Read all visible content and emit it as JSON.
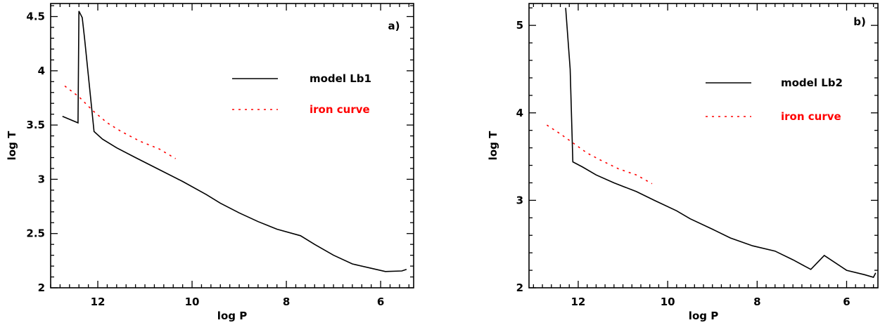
{
  "chart_data": [
    {
      "type": "line",
      "panel_label": "a)",
      "xlabel": "log P",
      "ylabel": "log T",
      "xlim": [
        13.0,
        5.3
      ],
      "ylim": [
        2.0,
        4.62
      ],
      "xticks_major": [
        12,
        10,
        8,
        6
      ],
      "yticks_major": [
        2,
        2.5,
        3,
        3.5,
        4,
        4.5
      ],
      "xtick_labels": [
        "12",
        "10",
        "8",
        "6"
      ],
      "ytick_labels": [
        "2",
        "2.5",
        "3",
        "3.5",
        "4",
        "4.5"
      ],
      "legend_position": "upper-right",
      "series": [
        {
          "name": "model Lb1",
          "color": "#000000",
          "style": "solid",
          "points": [
            [
              12.75,
              3.58
            ],
            [
              12.42,
              3.52
            ],
            [
              12.4,
              4.55
            ],
            [
              12.33,
              4.49
            ],
            [
              12.28,
              4.3
            ],
            [
              12.08,
              3.44
            ],
            [
              11.9,
              3.37
            ],
            [
              11.6,
              3.29
            ],
            [
              11.2,
              3.2
            ],
            [
              10.7,
              3.09
            ],
            [
              10.2,
              2.98
            ],
            [
              9.7,
              2.86
            ],
            [
              9.4,
              2.78
            ],
            [
              9.0,
              2.69
            ],
            [
              8.6,
              2.61
            ],
            [
              8.2,
              2.54
            ],
            [
              7.7,
              2.48
            ],
            [
              7.4,
              2.4
            ],
            [
              7.0,
              2.3
            ],
            [
              6.6,
              2.22
            ],
            [
              6.2,
              2.18
            ],
            [
              5.9,
              2.15
            ],
            [
              5.55,
              2.155
            ],
            [
              5.45,
              2.17
            ]
          ]
        },
        {
          "name": "iron curve",
          "color": "#ff0000",
          "style": "dotted",
          "points": [
            [
              12.7,
              3.86
            ],
            [
              12.4,
              3.76
            ],
            [
              12.1,
              3.63
            ],
            [
              11.8,
              3.52
            ],
            [
              11.5,
              3.44
            ],
            [
              11.1,
              3.35
            ],
            [
              10.7,
              3.28
            ],
            [
              10.35,
              3.19
            ]
          ]
        }
      ]
    },
    {
      "type": "line",
      "panel_label": "b)",
      "xlabel": "log P",
      "ylabel": "log T",
      "xlim": [
        13.1,
        5.3
      ],
      "ylim": [
        2.0,
        5.25
      ],
      "xticks_major": [
        12,
        10,
        8,
        6
      ],
      "yticks_major": [
        2,
        3,
        4,
        5
      ],
      "xtick_labels": [
        "12",
        "10",
        "8",
        "6"
      ],
      "ytick_labels": [
        "2",
        "3",
        "4",
        "5"
      ],
      "legend_position": "upper-right",
      "series": [
        {
          "name": "model Lb2",
          "color": "#000000",
          "style": "solid",
          "points": [
            [
              12.28,
              5.2
            ],
            [
              12.18,
              4.5
            ],
            [
              12.12,
              3.44
            ],
            [
              11.9,
              3.38
            ],
            [
              11.6,
              3.29
            ],
            [
              11.2,
              3.2
            ],
            [
              10.7,
              3.1
            ],
            [
              10.3,
              3.0
            ],
            [
              9.8,
              2.88
            ],
            [
              9.5,
              2.79
            ],
            [
              9.0,
              2.67
            ],
            [
              8.6,
              2.57
            ],
            [
              8.1,
              2.48
            ],
            [
              7.6,
              2.42
            ],
            [
              7.2,
              2.32
            ],
            [
              6.8,
              2.21
            ],
            [
              6.5,
              2.37
            ],
            [
              6.0,
              2.2
            ],
            [
              5.6,
              2.15
            ],
            [
              5.4,
              2.12
            ],
            [
              5.35,
              2.17
            ]
          ]
        },
        {
          "name": "iron curve",
          "color": "#ff0000",
          "style": "dotted",
          "points": [
            [
              12.7,
              3.86
            ],
            [
              12.4,
              3.76
            ],
            [
              12.1,
              3.65
            ],
            [
              11.8,
              3.54
            ],
            [
              11.5,
              3.46
            ],
            [
              11.1,
              3.36
            ],
            [
              10.7,
              3.29
            ],
            [
              10.35,
              3.19
            ]
          ]
        }
      ]
    }
  ]
}
